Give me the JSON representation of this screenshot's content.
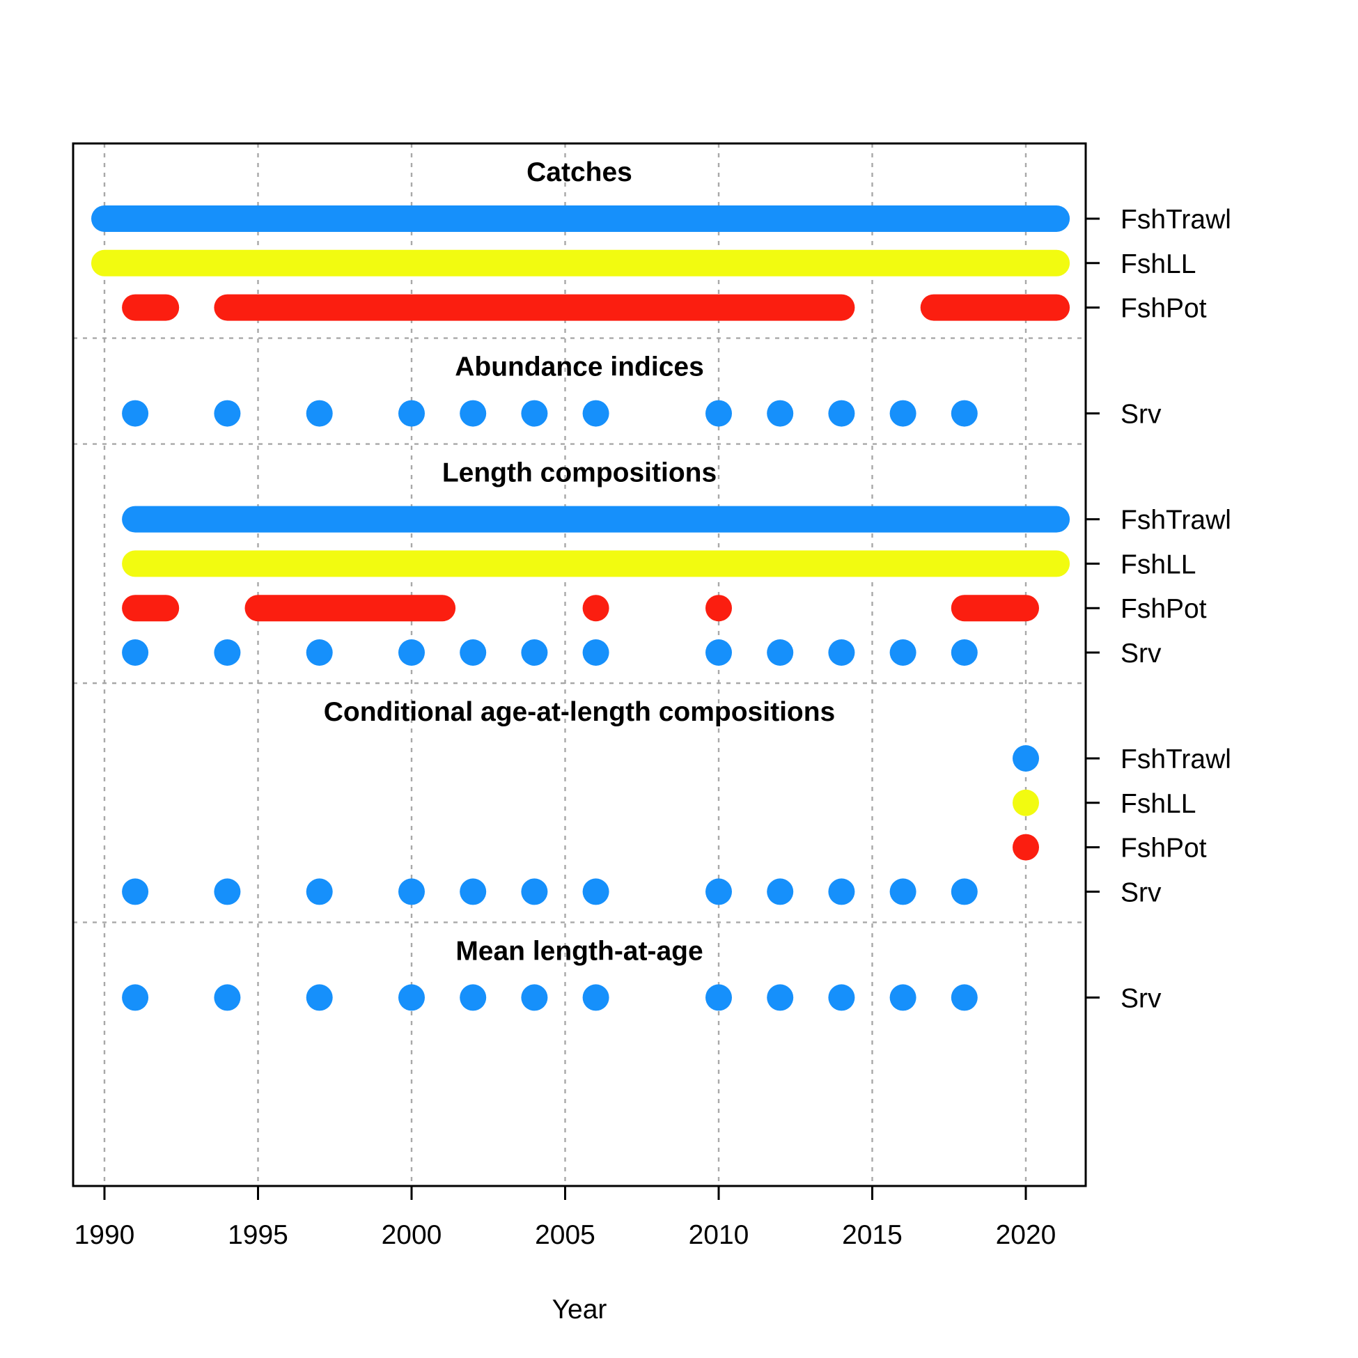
{
  "chart_data": {
    "type": "timeline",
    "xlabel": "Year",
    "xlim": [
      1990,
      2021
    ],
    "x_ticks": [
      "1990",
      "1995",
      "2000",
      "2005",
      "2010",
      "2015",
      "2020"
    ],
    "grid": true,
    "colors": {
      "FshTrawl": "#1690fb",
      "FshLL": "#f2fb10",
      "FshPot": "#fb1e10",
      "Srv": "#1690fb"
    },
    "panels": [
      {
        "title": "Catches",
        "rows": [
          {
            "label": "FshTrawl",
            "years": [
              1990,
              1991,
              1992,
              1993,
              1994,
              1995,
              1996,
              1997,
              1998,
              1999,
              2000,
              2001,
              2002,
              2003,
              2004,
              2005,
              2006,
              2007,
              2008,
              2009,
              2010,
              2011,
              2012,
              2013,
              2014,
              2015,
              2016,
              2017,
              2018,
              2019,
              2020,
              2021
            ]
          },
          {
            "label": "FshLL",
            "years": [
              1990,
              1991,
              1992,
              1993,
              1994,
              1995,
              1996,
              1997,
              1998,
              1999,
              2000,
              2001,
              2002,
              2003,
              2004,
              2005,
              2006,
              2007,
              2008,
              2009,
              2010,
              2011,
              2012,
              2013,
              2014,
              2015,
              2016,
              2017,
              2018,
              2019,
              2020,
              2021
            ]
          },
          {
            "label": "FshPot",
            "years": [
              1991,
              1992,
              1994,
              1995,
              1996,
              1997,
              1998,
              1999,
              2000,
              2001,
              2002,
              2003,
              2004,
              2005,
              2006,
              2007,
              2008,
              2009,
              2010,
              2011,
              2012,
              2013,
              2014,
              2017,
              2018,
              2019,
              2020,
              2021
            ]
          }
        ]
      },
      {
        "title": "Abundance indices",
        "rows": [
          {
            "label": "Srv",
            "years": [
              1991,
              1994,
              1997,
              2000,
              2002,
              2004,
              2006,
              2010,
              2012,
              2014,
              2016,
              2018
            ]
          }
        ]
      },
      {
        "title": "Length compositions",
        "rows": [
          {
            "label": "FshTrawl",
            "years": [
              1991,
              1992,
              1993,
              1994,
              1995,
              1996,
              1997,
              1998,
              1999,
              2000,
              2001,
              2002,
              2003,
              2004,
              2005,
              2006,
              2007,
              2008,
              2009,
              2010,
              2011,
              2012,
              2013,
              2014,
              2015,
              2016,
              2017,
              2018,
              2019,
              2020,
              2021
            ]
          },
          {
            "label": "FshLL",
            "years": [
              1991,
              1992,
              1993,
              1994,
              1995,
              1996,
              1997,
              1998,
              1999,
              2000,
              2001,
              2002,
              2003,
              2004,
              2005,
              2006,
              2007,
              2008,
              2009,
              2010,
              2011,
              2012,
              2013,
              2014,
              2015,
              2016,
              2017,
              2018,
              2019,
              2020,
              2021
            ]
          },
          {
            "label": "FshPot",
            "years": [
              1991,
              1992,
              1995,
              1996,
              1997,
              1998,
              1999,
              2000,
              2001,
              2006,
              2010,
              2018,
              2019,
              2020
            ]
          },
          {
            "label": "Srv",
            "years": [
              1991,
              1994,
              1997,
              2000,
              2002,
              2004,
              2006,
              2010,
              2012,
              2014,
              2016,
              2018
            ]
          }
        ]
      },
      {
        "title": "Conditional age-at-length compositions",
        "rows": [
          {
            "label": "FshTrawl",
            "years": [
              2020
            ]
          },
          {
            "label": "FshLL",
            "years": [
              2020
            ]
          },
          {
            "label": "FshPot",
            "years": [
              2020
            ]
          },
          {
            "label": "Srv",
            "years": [
              1991,
              1994,
              1997,
              2000,
              2002,
              2004,
              2006,
              2010,
              2012,
              2014,
              2016,
              2018
            ]
          }
        ]
      },
      {
        "title": "Mean length-at-age",
        "rows": [
          {
            "label": "Srv",
            "years": [
              1991,
              1994,
              1997,
              2000,
              2002,
              2004,
              2006,
              2010,
              2012,
              2014,
              2016,
              2018
            ]
          }
        ]
      }
    ]
  }
}
